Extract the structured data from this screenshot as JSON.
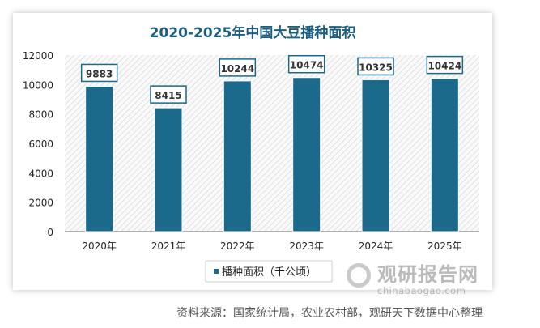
{
  "chart_data": {
    "type": "bar",
    "title": "2020-2025年中国大豆播种面积",
    "categories": [
      "2020年",
      "2021年",
      "2022年",
      "2023年",
      "2024年",
      "2025年"
    ],
    "series": [
      {
        "name": "播种面积（千公顷）",
        "values": [
          9883,
          8415,
          10244,
          10474,
          10325,
          10424
        ]
      }
    ],
    "ylim": [
      0,
      12000
    ],
    "yticks": [
      0,
      2000,
      4000,
      6000,
      8000,
      10000,
      12000
    ],
    "xlabel": "",
    "ylabel": "",
    "legend": "bottom",
    "grid": false,
    "bar_color": "#1b6a8c",
    "title_color": "#1b5f80"
  },
  "watermark": {
    "cn": "观研报告网",
    "en": "chinabaogao.com"
  },
  "source": "资料来源：国家统计局，农业农村部，观研天下数据中心整理"
}
